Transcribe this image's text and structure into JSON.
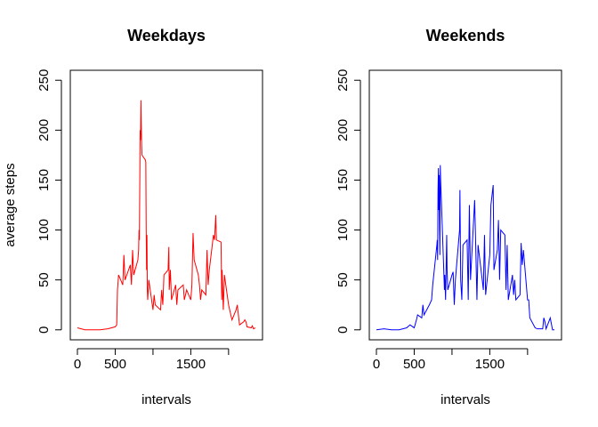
{
  "chart_data": [
    {
      "type": "line",
      "title": "Weekdays",
      "xlabel": "intervals",
      "ylabel": "average steps",
      "color": "#ff0000",
      "x": [
        0,
        100,
        200,
        300,
        400,
        500,
        520,
        530,
        545,
        600,
        615,
        630,
        700,
        715,
        730,
        745,
        800,
        810,
        815,
        820,
        830,
        835,
        840,
        845,
        850,
        855,
        900,
        905,
        910,
        915,
        920,
        925,
        930,
        945,
        1000,
        1015,
        1030,
        1100,
        1115,
        1130,
        1145,
        1200,
        1210,
        1215,
        1230,
        1245,
        1300,
        1315,
        1330,
        1400,
        1415,
        1430,
        1445,
        1500,
        1515,
        1530,
        1545,
        1600,
        1615,
        1630,
        1645,
        1700,
        1715,
        1730,
        1745,
        1800,
        1815,
        1830,
        1840,
        1900,
        1910,
        1915,
        1930,
        1945,
        2000,
        2015,
        2030,
        2045,
        2100,
        2115,
        2130,
        2145,
        2200,
        2215,
        2230,
        2245,
        2300,
        2315,
        2330,
        2355
      ],
      "values": [
        2,
        0,
        0,
        0,
        1,
        3,
        5,
        40,
        55,
        45,
        75,
        50,
        65,
        45,
        80,
        55,
        70,
        80,
        100,
        90,
        200,
        190,
        230,
        205,
        185,
        175,
        170,
        168,
        100,
        60,
        95,
        40,
        30,
        50,
        20,
        35,
        25,
        20,
        40,
        25,
        55,
        60,
        83,
        40,
        60,
        30,
        45,
        25,
        40,
        45,
        30,
        35,
        40,
        30,
        45,
        97,
        70,
        55,
        45,
        30,
        40,
        35,
        80,
        45,
        60,
        95,
        90,
        115,
        90,
        88,
        30,
        60,
        20,
        55,
        25,
        20,
        15,
        10,
        20,
        25,
        15,
        5,
        8,
        10,
        8,
        3,
        2,
        4,
        1,
        2
      ],
      "xlim": [
        -94.2,
        2449.2
      ],
      "ylim": [
        -10,
        260
      ],
      "xticks": [
        0,
        500,
        {
          "value": 1000,
          "label": null
        },
        1500,
        {
          "value": 2000,
          "label": null
        }
      ],
      "yticks": [
        0,
        50,
        100,
        150,
        200,
        250
      ]
    },
    {
      "type": "line",
      "title": "Weekends",
      "xlabel": "intervals",
      "color": "#0000ff",
      "x": [
        0,
        100,
        200,
        300,
        400,
        445,
        500,
        530,
        545,
        600,
        615,
        630,
        700,
        730,
        745,
        800,
        805,
        810,
        815,
        820,
        825,
        830,
        835,
        840,
        845,
        850,
        900,
        905,
        915,
        930,
        935,
        945,
        1000,
        1015,
        1030,
        1045,
        1100,
        1105,
        1115,
        1130,
        1145,
        1200,
        1215,
        1230,
        1245,
        1300,
        1315,
        1330,
        1345,
        1400,
        1415,
        1430,
        1445,
        1500,
        1515,
        1530,
        1545,
        1555,
        1600,
        1615,
        1630,
        1645,
        1700,
        1715,
        1730,
        1745,
        1800,
        1815,
        1830,
        1845,
        1900,
        1915,
        1930,
        1945,
        2000,
        2015,
        2030,
        2100,
        2130,
        2200,
        2215,
        2230,
        2245,
        2300,
        2330,
        2355
      ],
      "values": [
        0,
        1,
        0,
        0,
        2,
        5,
        2,
        10,
        15,
        12,
        25,
        15,
        25,
        30,
        45,
        85,
        90,
        70,
        140,
        162,
        120,
        155,
        100,
        75,
        165,
        150,
        40,
        55,
        30,
        95,
        60,
        40,
        55,
        58,
        25,
        50,
        100,
        140,
        50,
        30,
        85,
        90,
        30,
        125,
        50,
        130,
        80,
        30,
        85,
        50,
        40,
        95,
        35,
        75,
        125,
        135,
        145,
        60,
        80,
        110,
        50,
        100,
        95,
        40,
        85,
        30,
        55,
        35,
        50,
        30,
        35,
        87,
        65,
        80,
        30,
        30,
        12,
        2,
        1,
        1,
        12,
        8,
        1,
        12,
        0,
        0
      ],
      "xlim": [
        -94.2,
        2449.2
      ],
      "ylim": [
        -10,
        260
      ],
      "xticks": [
        0,
        500,
        {
          "value": 1000,
          "label": null
        },
        1500,
        {
          "value": 2000,
          "label": null
        }
      ],
      "yticks": [
        0,
        50,
        100,
        150,
        200,
        250
      ]
    }
  ]
}
